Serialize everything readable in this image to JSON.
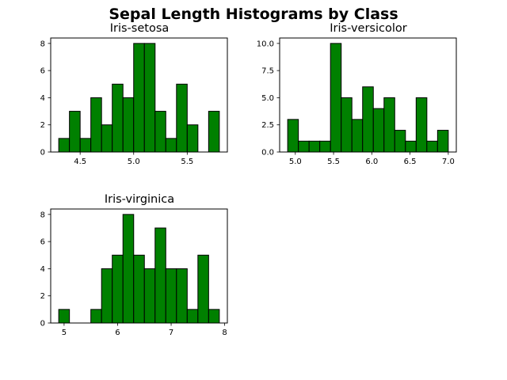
{
  "figure": {
    "suptitle": "Sepal Length Histograms by Class",
    "bar_color": "#008000",
    "edge_color": "#000000"
  },
  "chart_data": [
    {
      "type": "bar",
      "title": "Iris-setosa",
      "xlabel": "",
      "ylabel": "",
      "bin_start": 4.3,
      "bin_width": 0.1,
      "values": [
        1,
        3,
        1,
        4,
        2,
        5,
        4,
        8,
        8,
        3,
        1,
        5,
        2,
        0,
        3
      ],
      "xlim": [
        4.225,
        5.875
      ],
      "ylim": [
        0,
        8.4
      ],
      "xticks": [
        4.5,
        5.0,
        5.5
      ],
      "xtick_labels": [
        "4.5",
        "5.0",
        "5.5"
      ],
      "yticks": [
        0,
        2,
        4,
        6,
        8
      ],
      "ytick_labels": [
        "0",
        "2",
        "4",
        "6",
        "8"
      ]
    },
    {
      "type": "bar",
      "title": "Iris-versicolor",
      "xlabel": "",
      "ylabel": "",
      "bin_start": 4.9,
      "bin_width": 0.14,
      "values": [
        3,
        1,
        1,
        1,
        10,
        5,
        3,
        6,
        4,
        5,
        2,
        1,
        5,
        1,
        2
      ],
      "xlim": [
        4.795,
        7.105
      ],
      "ylim": [
        0,
        10.5
      ],
      "xticks": [
        5.0,
        5.5,
        6.0,
        6.5,
        7.0
      ],
      "xtick_labels": [
        "5.0",
        "5.5",
        "6.0",
        "6.5",
        "7.0"
      ],
      "yticks": [
        0,
        2.5,
        5.0,
        7.5,
        10.0
      ],
      "ytick_labels": [
        "0.0",
        "2.5",
        "5.0",
        "7.5",
        "10.0"
      ]
    },
    {
      "type": "bar",
      "title": "Iris-virginica",
      "xlabel": "",
      "ylabel": "",
      "bin_start": 4.9,
      "bin_width": 0.2,
      "values": [
        1,
        0,
        0,
        1,
        4,
        5,
        8,
        5,
        4,
        7,
        4,
        4,
        1,
        5,
        1
      ],
      "xlim": [
        4.75,
        8.05
      ],
      "ylim": [
        0,
        8.4
      ],
      "xticks": [
        5,
        6,
        7,
        8
      ],
      "xtick_labels": [
        "5",
        "6",
        "7",
        "8"
      ],
      "yticks": [
        0,
        2,
        4,
        6,
        8
      ],
      "ytick_labels": [
        "0",
        "2",
        "4",
        "6",
        "8"
      ]
    }
  ]
}
